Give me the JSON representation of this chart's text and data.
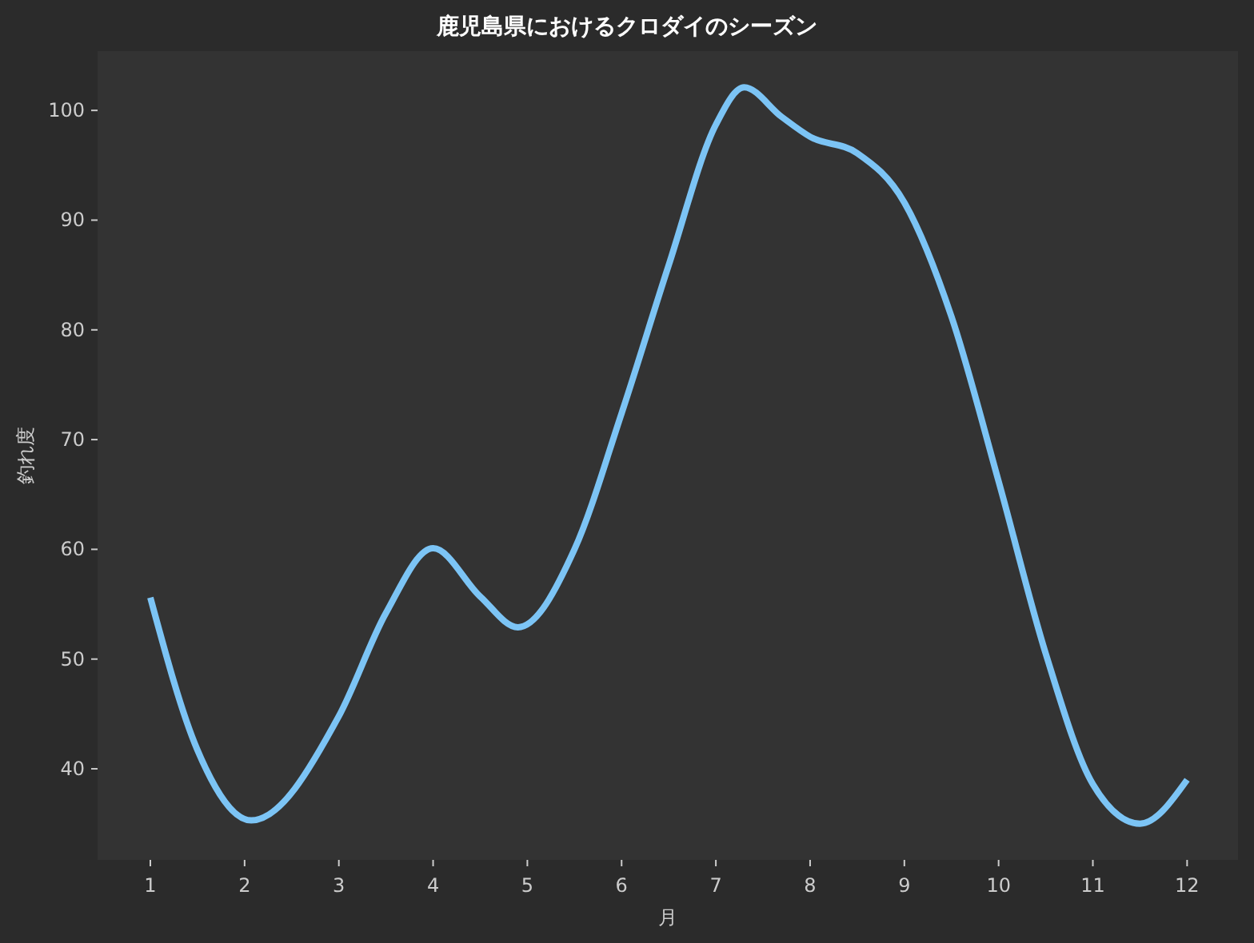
{
  "chart_data": {
    "type": "line",
    "title": "鹿児島県におけるクロダイのシーズン",
    "xlabel": "月",
    "ylabel": "釣れ度",
    "x": [
      1,
      1.5,
      2.07,
      3,
      3.5,
      4,
      4.5,
      4.9,
      5.5,
      6,
      6.5,
      7,
      7.3,
      7.7,
      8,
      8.5,
      9,
      9.5,
      10,
      10.5,
      11,
      11.5,
      12
    ],
    "series": [
      {
        "color": "#7cc4f5",
        "values": [
          55.6,
          41.7,
          35.3,
          44.8,
          54.2,
          60.1,
          55.7,
          52.9,
          60.0,
          72.4,
          85.9,
          98.7,
          102.1,
          99.4,
          97.6,
          96.1,
          91.6,
          81.2,
          66.2,
          50.5,
          38.6,
          35.0,
          39.0
        ]
      }
    ],
    "xlim": [
      0.44,
      12.54
    ],
    "ylim": [
      31.7,
      105.4
    ],
    "xticks": [
      1,
      2,
      3,
      4,
      5,
      6,
      7,
      8,
      9,
      10,
      11,
      12
    ],
    "yticks": [
      40,
      50,
      60,
      70,
      80,
      90,
      100
    ],
    "grid": false,
    "marker": "none",
    "line_style": "solid"
  }
}
